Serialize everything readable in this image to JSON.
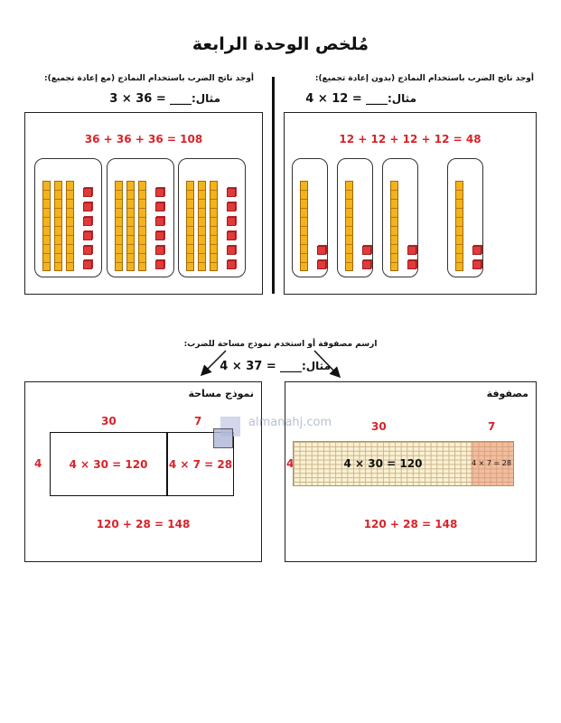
{
  "title": "مُلخص الوحدة الرابعة",
  "left_top": {
    "instruction": "أوجد ناتج الضرب باستخدام النماذج (مع إعادة تجميع):",
    "example_label": "مثال:",
    "blank": "____",
    "equation": "3 × 36 =",
    "solution": "36 + 36 + 36 = 108",
    "groups": 3,
    "tens_per_group": 3,
    "ones_per_group": 6
  },
  "right_top": {
    "instruction": "أوجد ناتج الضرب باستخدام النماذج (بدون إعادة تجميع):",
    "example_label": "مثال:",
    "blank": "____",
    "equation": "4 × 12 =",
    "solution": "12 + 12 + 12 + 12 = 48",
    "groups": 4,
    "tens_per_group": 1,
    "ones_per_group": 2
  },
  "middle": {
    "instruction": "ارسم مصفوفة أو استخدم نموذج مساحة للضرب:",
    "example_label": "مثال:",
    "blank": "____",
    "equation": "4 × 37 ="
  },
  "area_model": {
    "heading": "نموذج مساحة",
    "top_labels": [
      "30",
      "7"
    ],
    "side_label": "4",
    "cells": [
      "4 × 30 = 120",
      "4 × 7 = 28"
    ],
    "total": "120 + 28 = 148"
  },
  "array_model": {
    "heading": "مصفوفة",
    "top_labels": [
      "30",
      "7"
    ],
    "side_label": "4",
    "cells": [
      "4 × 30 = 120",
      "4 × 7 = 28"
    ],
    "total": "120 + 28 = 148"
  },
  "watermark": "almanahj.com",
  "colors": {
    "red": "#d8232a",
    "tens": "#f3b31b",
    "ones": "#e03a3a",
    "array_shade": "#f2c2a8"
  }
}
